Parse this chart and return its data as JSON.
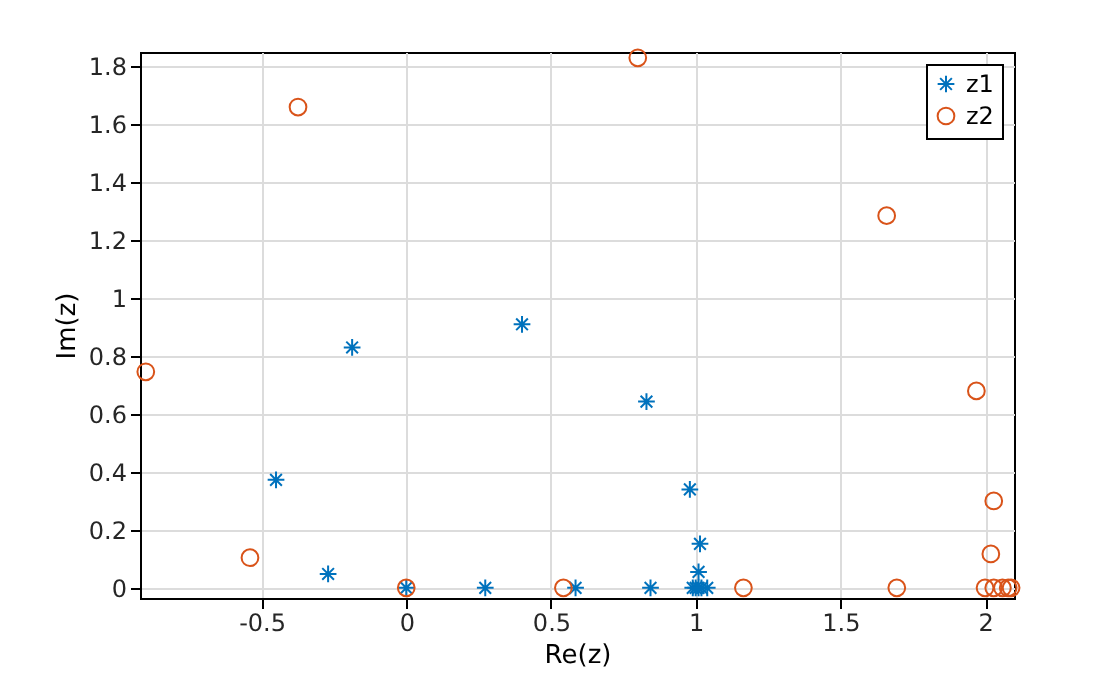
{
  "chart_data": {
    "type": "scatter",
    "xlabel": "Re(z)",
    "ylabel": "Im(z)",
    "series": [
      {
        "name": "z1",
        "color": "#0072bd",
        "marker": "cross",
        "x": [
          -0.45,
          -0.27,
          -0.187,
          0,
          0.273,
          0.585,
          0.4,
          0.83,
          0.844,
          0.98,
          1.015,
          1.01,
          0.99,
          1.0,
          1.01,
          1.02,
          1.04
        ],
        "values": [
          0.373,
          0.048,
          0.83,
          0,
          0,
          0,
          0.91,
          0.643,
          0,
          0.34,
          0.152,
          0.055,
          0,
          0,
          0,
          0,
          0
        ]
      },
      {
        "name": "z2",
        "color": "#d95319",
        "marker": "circle",
        "x": [
          -0.9,
          -0.54,
          -0.374,
          0,
          0.543,
          0.8,
          1.165,
          1.66,
          1.695,
          1.97,
          2.03,
          2.02,
          2.0,
          2.03,
          2.06,
          2.08,
          2.09
        ],
        "values": [
          0.746,
          0.104,
          1.66,
          0,
          0,
          1.83,
          0,
          1.285,
          0,
          0.68,
          0.3,
          0.117,
          0,
          0,
          0,
          0,
          0
        ]
      }
    ],
    "xlim": [
      -0.92,
      2.1
    ],
    "xticks": [
      -0.5,
      0,
      0.5,
      1,
      1.5,
      2
    ],
    "ylim": [
      -0.035,
      1.85
    ],
    "yticks": [
      0,
      0.2,
      0.4,
      0.6,
      0.8,
      1,
      1.2,
      1.4,
      1.6,
      1.8
    ],
    "grid": true,
    "legend": "top right"
  }
}
